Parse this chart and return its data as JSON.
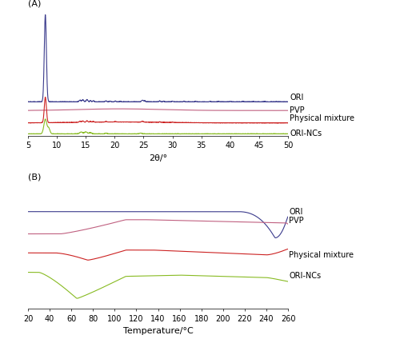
{
  "panel_A": {
    "xmin": 5,
    "xmax": 50,
    "xticks": [
      5,
      10,
      15,
      20,
      25,
      30,
      35,
      40,
      45,
      50
    ],
    "xlabel": "2θ/°",
    "label": "(A)",
    "colors": {
      "ORI": "#3a3a8c",
      "PVP": "#c06080",
      "Physical mixture": "#cc2222",
      "ORI-NCs": "#88bb22"
    }
  },
  "panel_B": {
    "xmin": 20,
    "xmax": 260,
    "xticks": [
      20,
      40,
      60,
      80,
      100,
      120,
      140,
      160,
      180,
      200,
      220,
      240,
      260
    ],
    "xlabel": "Temperature/°C",
    "label": "(B)",
    "colors": {
      "ORI": "#3a3a8c",
      "PVP": "#c06080",
      "Physical mixture": "#cc2222",
      "ORI-NCs": "#88bb22"
    }
  },
  "label_fontsize": 8,
  "axis_label_fontsize": 8,
  "tick_fontsize": 7,
  "series_label_fontsize": 7,
  "background_color": "#ffffff",
  "line_width": 0.8
}
